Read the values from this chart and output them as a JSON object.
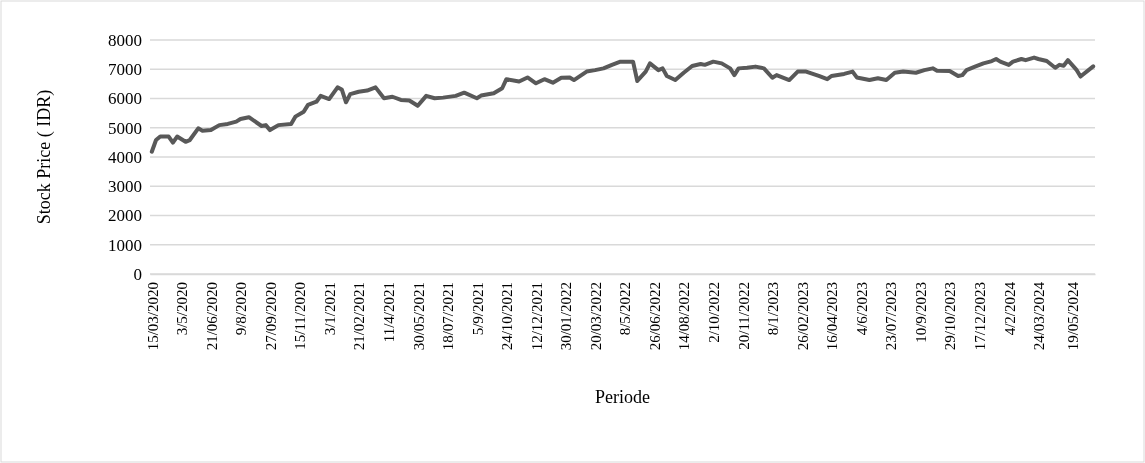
{
  "chart_data": {
    "type": "line",
    "xlabel": "Periode",
    "ylabel": "Stock Price ( IDR)",
    "x": [
      "2020-03-15",
      "2020-03-22",
      "2020-03-29",
      "2020-04-12",
      "2020-04-19",
      "2020-04-26",
      "2020-05-10",
      "2020-05-17",
      "2020-05-31",
      "2020-06-07",
      "2020-06-21",
      "2020-07-05",
      "2020-07-19",
      "2020-08-02",
      "2020-08-09",
      "2020-08-23",
      "2020-09-13",
      "2020-09-20",
      "2020-09-27",
      "2020-10-11",
      "2020-11-01",
      "2020-11-08",
      "2020-11-22",
      "2020-11-29",
      "2020-12-13",
      "2020-12-20",
      "2021-01-03",
      "2021-01-17",
      "2021-01-24",
      "2021-01-31",
      "2021-02-07",
      "2021-02-21",
      "2021-03-07",
      "2021-03-21",
      "2021-04-04",
      "2021-04-18",
      "2021-05-02",
      "2021-05-16",
      "2021-05-30",
      "2021-06-13",
      "2021-06-27",
      "2021-07-11",
      "2021-08-01",
      "2021-08-15",
      "2021-09-05",
      "2021-09-12",
      "2021-10-03",
      "2021-10-17",
      "2021-10-24",
      "2021-11-14",
      "2021-11-28",
      "2021-12-12",
      "2021-12-26",
      "2022-01-09",
      "2022-01-23",
      "2022-02-06",
      "2022-02-13",
      "2022-03-06",
      "2022-03-20",
      "2022-04-03",
      "2022-04-17",
      "2022-05-01",
      "2022-05-22",
      "2022-05-29",
      "2022-06-12",
      "2022-06-19",
      "2022-07-03",
      "2022-07-10",
      "2022-07-17",
      "2022-07-31",
      "2022-08-14",
      "2022-08-28",
      "2022-09-11",
      "2022-09-18",
      "2022-10-02",
      "2022-10-16",
      "2022-10-30",
      "2022-11-06",
      "2022-11-13",
      "2022-11-27",
      "2022-12-11",
      "2022-12-25",
      "2023-01-08",
      "2023-01-15",
      "2023-02-05",
      "2023-02-19",
      "2023-03-05",
      "2023-03-26",
      "2023-04-09",
      "2023-04-16",
      "2023-05-07",
      "2023-05-21",
      "2023-05-28",
      "2023-06-18",
      "2023-07-02",
      "2023-07-16",
      "2023-07-30",
      "2023-08-13",
      "2023-09-03",
      "2023-09-17",
      "2023-10-01",
      "2023-10-08",
      "2023-10-29",
      "2023-11-12",
      "2023-11-19",
      "2023-11-26",
      "2023-12-10",
      "2023-12-24",
      "2024-01-07",
      "2024-01-14",
      "2024-01-21",
      "2024-02-04",
      "2024-02-11",
      "2024-02-25",
      "2024-03-03",
      "2024-03-17",
      "2024-03-24",
      "2024-04-07",
      "2024-04-21",
      "2024-04-28",
      "2024-05-05",
      "2024-05-12",
      "2024-05-26",
      "2024-06-02",
      "2024-06-23"
    ],
    "series": [
      {
        "color": "#595959",
        "values": [
          4180,
          4580,
          4700,
          4700,
          4490,
          4700,
          4520,
          4580,
          4980,
          4900,
          4920,
          5090,
          5130,
          5210,
          5300,
          5360,
          5060,
          5090,
          4920,
          5090,
          5130,
          5380,
          5550,
          5780,
          5890,
          6090,
          5980,
          6380,
          6310,
          5870,
          6150,
          6230,
          6270,
          6380,
          6010,
          6060,
          5950,
          5930,
          5750,
          6090,
          6010,
          6030,
          6090,
          6200,
          6010,
          6100,
          6180,
          6350,
          6660,
          6580,
          6720,
          6520,
          6660,
          6540,
          6710,
          6720,
          6630,
          6920,
          6970,
          7030,
          7150,
          7260,
          7260,
          6600,
          6920,
          7200,
          6970,
          7030,
          6770,
          6630,
          6880,
          7110,
          7180,
          7150,
          7260,
          7200,
          7030,
          6800,
          7030,
          7050,
          7090,
          7030,
          6710,
          6800,
          6630,
          6920,
          6920,
          6770,
          6660,
          6770,
          6840,
          6920,
          6720,
          6630,
          6690,
          6630,
          6880,
          6920,
          6880,
          6970,
          7030,
          6950,
          6940,
          6770,
          6800,
          6970,
          7090,
          7200,
          7280,
          7350,
          7260,
          7150,
          7260,
          7350,
          7310,
          7400,
          7350,
          7280,
          7050,
          7150,
          7120,
          7310,
          6990,
          6750,
          7100
        ]
      }
    ],
    "xlim": [
      "2020-03-12",
      "2024-06-26"
    ],
    "xticks": [
      {
        "value": "2020-03-15",
        "label": "15/03/2020"
      },
      {
        "value": "2020-05-03",
        "label": "3/5/2020"
      },
      {
        "value": "2020-06-21",
        "label": "21/06/2020"
      },
      {
        "value": "2020-08-09",
        "label": "9/8/2020"
      },
      {
        "value": "2020-09-27",
        "label": "27/09/2020"
      },
      {
        "value": "2020-11-15",
        "label": "15/11/2020"
      },
      {
        "value": "2021-01-03",
        "label": "3/1/2021"
      },
      {
        "value": "2021-02-21",
        "label": "21/02/2021"
      },
      {
        "value": "2021-04-11",
        "label": "11/4/2021"
      },
      {
        "value": "2021-05-30",
        "label": "30/05/2021"
      },
      {
        "value": "2021-07-18",
        "label": "18/07/2021"
      },
      {
        "value": "2021-09-05",
        "label": "5/9/2021"
      },
      {
        "value": "2021-10-24",
        "label": "24/10/2021"
      },
      {
        "value": "2021-12-12",
        "label": "12/12/2021"
      },
      {
        "value": "2022-01-30",
        "label": "30/01/2022"
      },
      {
        "value": "2022-03-20",
        "label": "20/03/2022"
      },
      {
        "value": "2022-05-08",
        "label": "8/5/2022"
      },
      {
        "value": "2022-06-26",
        "label": "26/06/2022"
      },
      {
        "value": "2022-08-14",
        "label": "14/08/2022"
      },
      {
        "value": "2022-10-02",
        "label": "2/10/2022"
      },
      {
        "value": "2022-11-20",
        "label": "20/11/2022"
      },
      {
        "value": "2023-01-08",
        "label": "8/1/2023"
      },
      {
        "value": "2023-02-26",
        "label": "26/02/2023"
      },
      {
        "value": "2023-04-16",
        "label": "16/04/2023"
      },
      {
        "value": "2023-06-04",
        "label": "4/6/2023"
      },
      {
        "value": "2023-07-23",
        "label": "23/07/2023"
      },
      {
        "value": "2023-09-10",
        "label": "10/9/2023"
      },
      {
        "value": "2023-10-29",
        "label": "29/10/2023"
      },
      {
        "value": "2023-12-17",
        "label": "17/12/2023"
      },
      {
        "value": "2024-02-04",
        "label": "4/2/2024"
      },
      {
        "value": "2024-03-24",
        "label": "24/03/2024"
      },
      {
        "value": "2024-05-19",
        "label": "19/05/2024"
      }
    ],
    "ylim": [
      0,
      8000
    ],
    "yticks": [
      0,
      1000,
      2000,
      3000,
      4000,
      5000,
      6000,
      7000,
      8000
    ],
    "grid": "y",
    "marker": "none",
    "line_style": "solid"
  }
}
